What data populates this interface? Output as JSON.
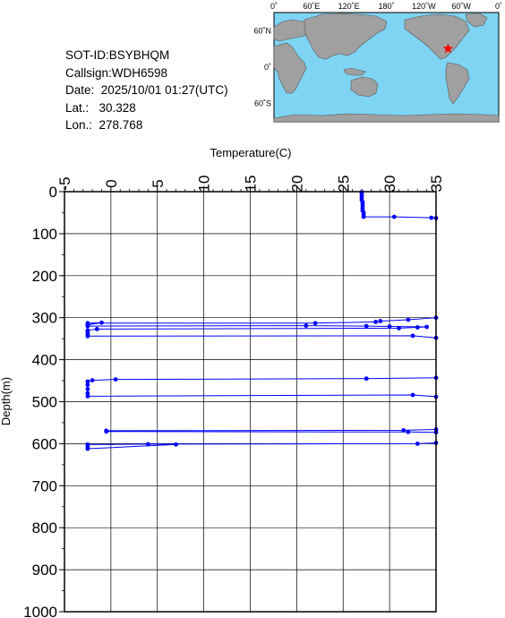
{
  "info": {
    "sot_id": "SOT-ID:BSYBHQM",
    "callsign": "Callsign:WDH6598",
    "date": "Date:  2025/10/01 01:27(UTC)",
    "lat": "Lat.:   30.328",
    "lon": "Lon.:  278.768"
  },
  "map": {
    "top_labels": [
      "0˚",
      "60˚E",
      "120˚E",
      "180˚",
      "120˚W",
      "60˚W",
      "0˚"
    ],
    "left_labels": [
      "60˚N",
      "0˚",
      "60˚S"
    ],
    "marker": {
      "lon": 278.768,
      "lat": 30.328
    },
    "colors": {
      "ocean": "#7fd4f4",
      "land": "#a0a0a0",
      "marker": "#ff0000"
    }
  },
  "chart_data": {
    "type": "line",
    "xlabel": "Temperature(C)",
    "ylabel": "Depth(m)",
    "xlim": [
      -5,
      35
    ],
    "ylim": [
      1000,
      0
    ],
    "x_ticks": [
      "-5",
      "0",
      "5",
      "10",
      "15",
      "20",
      "25",
      "30",
      "35"
    ],
    "y_ticks": [
      "0",
      "100",
      "200",
      "300",
      "400",
      "500",
      "600",
      "700",
      "800",
      "900",
      "1000"
    ],
    "line_color": "#0000ff",
    "series": [
      {
        "points": [
          [
            27.0,
            1
          ],
          [
            27.0,
            5
          ],
          [
            27.0,
            10
          ],
          [
            27.0,
            15
          ],
          [
            27.0,
            20
          ],
          [
            27.1,
            25
          ],
          [
            27.1,
            30
          ],
          [
            27.1,
            35
          ],
          [
            27.1,
            40
          ],
          [
            27.1,
            45
          ],
          [
            27.2,
            50
          ],
          [
            27.2,
            55
          ],
          [
            27.2,
            60
          ],
          [
            30.5,
            60
          ],
          [
            34.5,
            62
          ],
          [
            35.0,
            63
          ],
          [
            35.0,
            300
          ],
          [
            32.0,
            305
          ],
          [
            29.0,
            308
          ],
          [
            28.5,
            310
          ],
          [
            22.0,
            313
          ],
          [
            -2.5,
            313
          ],
          [
            -1.0,
            312
          ],
          [
            -2.5,
            317
          ],
          [
            -2.5,
            320
          ],
          [
            21.0,
            319
          ],
          [
            27.5,
            320
          ],
          [
            30.0,
            321
          ],
          [
            34.0,
            322
          ],
          [
            33.0,
            323
          ],
          [
            31.0,
            325
          ],
          [
            -1.5,
            327
          ],
          [
            -2.5,
            330
          ],
          [
            -2.5,
            335
          ],
          [
            -2.5,
            340
          ],
          [
            -2.5,
            344
          ],
          [
            32.5,
            343
          ],
          [
            35.0,
            348
          ],
          [
            35.0,
            443
          ],
          [
            27.5,
            445
          ],
          [
            0.5,
            447
          ],
          [
            -2.0,
            449
          ],
          [
            -2.5,
            452
          ],
          [
            -2.5,
            460
          ],
          [
            -2.5,
            470
          ],
          [
            -2.5,
            480
          ],
          [
            -2.5,
            487
          ],
          [
            32.5,
            484
          ],
          [
            35.0,
            488
          ],
          [
            35.0,
            566
          ],
          [
            31.5,
            568
          ],
          [
            -0.5,
            569
          ],
          [
            -0.5,
            571
          ],
          [
            32.0,
            572
          ],
          [
            35.0,
            573
          ],
          [
            35.0,
            598
          ],
          [
            33.0,
            600
          ],
          [
            4.0,
            601
          ],
          [
            -2.5,
            602
          ],
          [
            -2.5,
            607
          ],
          [
            -2.5,
            612
          ],
          [
            7.0,
            602
          ]
        ]
      }
    ]
  }
}
